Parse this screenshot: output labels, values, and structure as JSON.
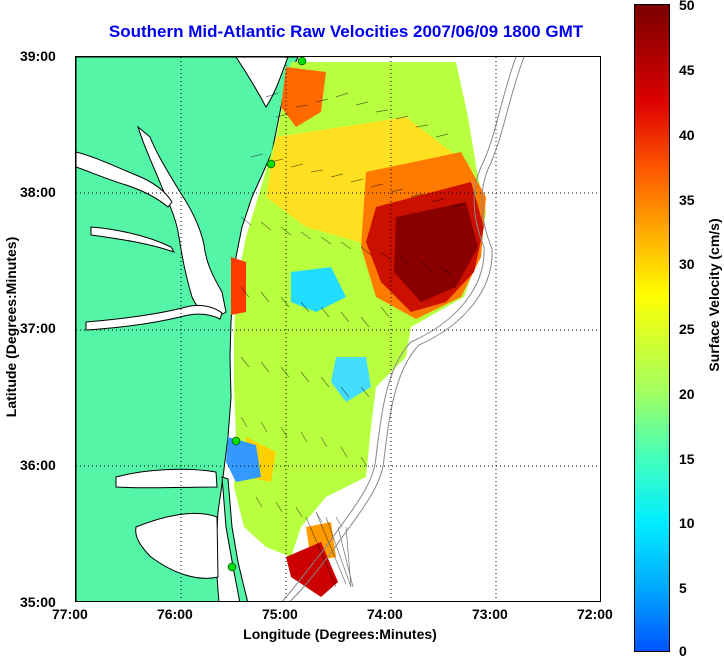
{
  "title": "Southern Mid-Atlantic Raw Velocities 2007/06/09 1800 GMT",
  "axes": {
    "xlabel": "Longitude (Degrees:Minutes)",
    "ylabel": "Latitude (Degrees:Minutes)",
    "x_ticks": [
      "77:00",
      "76:00",
      "75:00",
      "74:00",
      "73:00",
      "72:00"
    ],
    "y_ticks": [
      "39:00",
      "38:00",
      "37:00",
      "36:00",
      "35:00"
    ],
    "xlim": [
      -77,
      -72
    ],
    "ylim": [
      35,
      39
    ]
  },
  "colorbar": {
    "label": "Surface Velocity (cm/s)",
    "ticks": [
      "50",
      "45",
      "40",
      "35",
      "30",
      "25",
      "20",
      "15",
      "10",
      "5",
      "0"
    ],
    "range": [
      0,
      50
    ]
  },
  "colors": {
    "land": "#55f5a8",
    "title": "#0000ee",
    "shoreline": "#000000",
    "bathymetry": "#888888",
    "station": "#00dd00"
  }
}
